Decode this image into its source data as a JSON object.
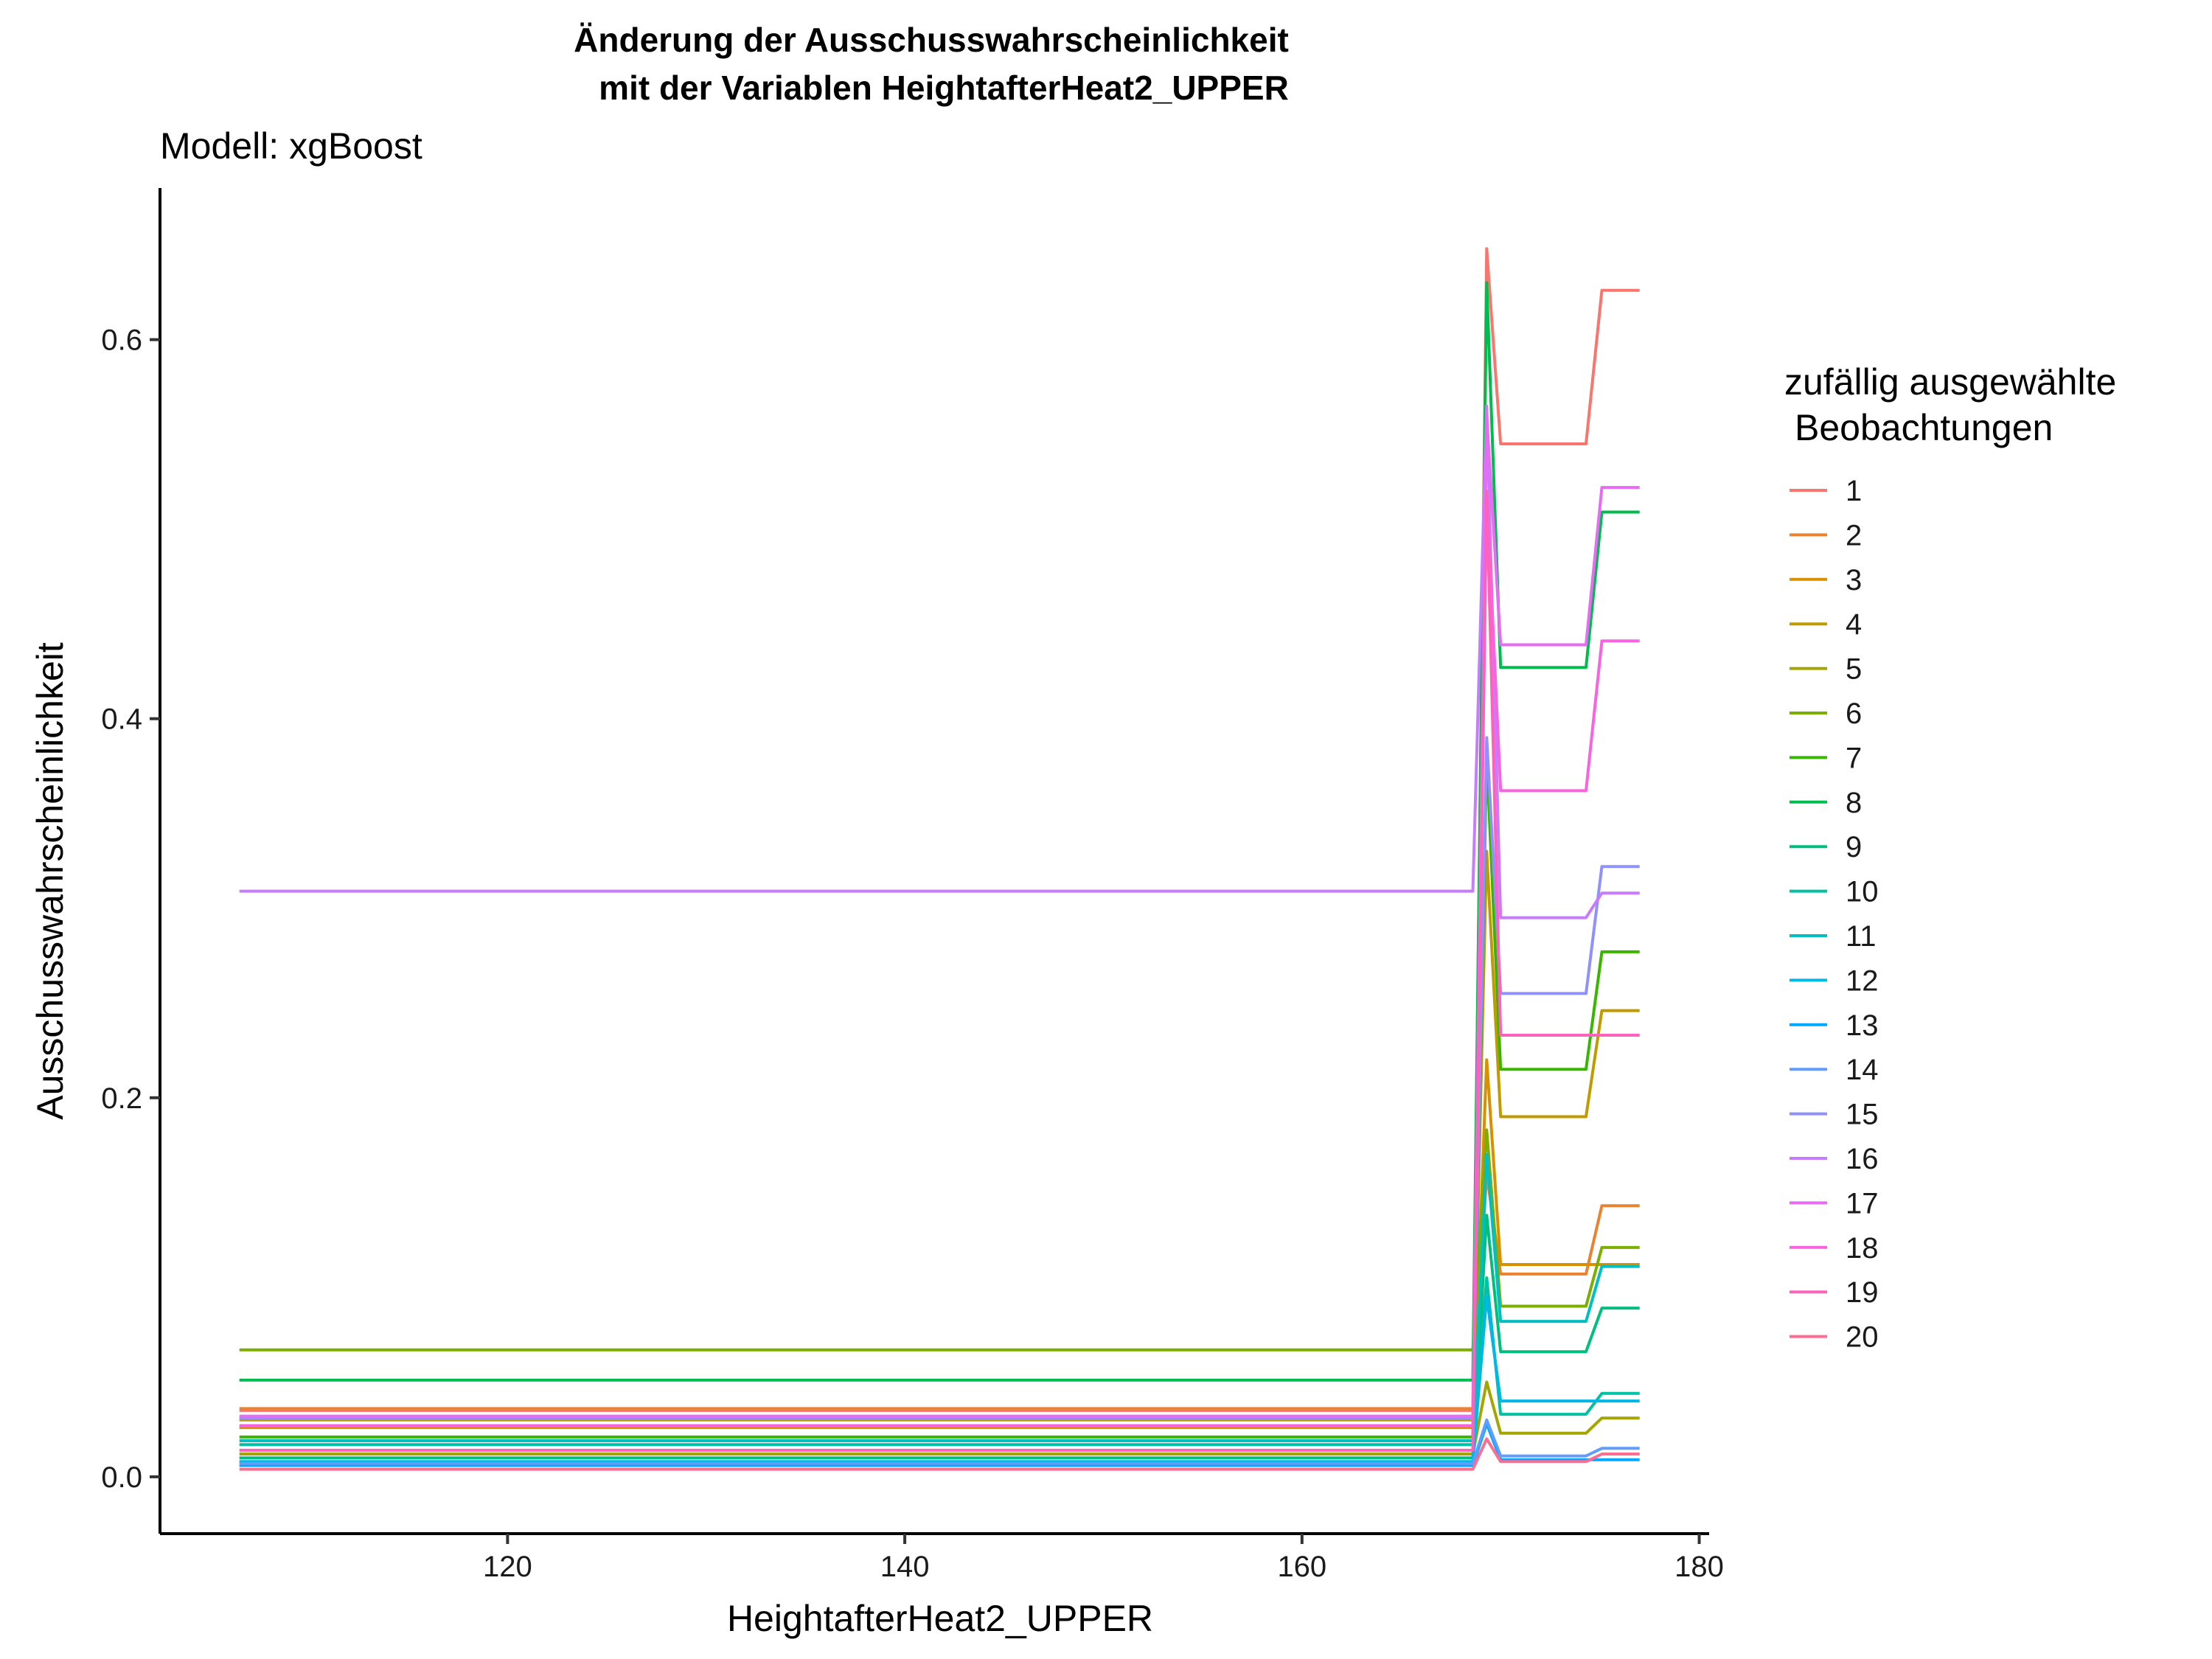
{
  "chart_data": {
    "type": "line",
    "title_lines": [
      "Änderung der Ausschusswahrscheinlichkeit",
      "mit der Variablen HeightafterHeat2_UPPER"
    ],
    "subtitle": "Modell: xgBoost",
    "xlabel": "HeightafterHeat2_UPPER",
    "ylabel": "Ausschusswahrscheinlichkeit",
    "xlim": [
      102.5,
      180.5
    ],
    "ylim": [
      -0.03,
      0.68
    ],
    "x_ticks": [
      120,
      140,
      160,
      180
    ],
    "y_ticks": [
      0.0,
      0.2,
      0.4,
      0.6
    ],
    "y_tick_labels": [
      "0.0",
      "0.2",
      "0.4",
      "0.6"
    ],
    "grid": false,
    "legend_title_lines": [
      "zufällig ausgewählte",
      "Beobachtungen"
    ],
    "legend_position": "right",
    "x": [
      106.5,
      168.6,
      169.3,
      170.0,
      174.3,
      175.1,
      177.0
    ],
    "series": [
      {
        "name": "1",
        "color": "#F8766D",
        "values": [
          0.035,
          0.035,
          0.648,
          0.545,
          0.545,
          0.626,
          0.626
        ]
      },
      {
        "name": "2",
        "color": "#EA8331",
        "values": [
          0.036,
          0.036,
          0.16,
          0.107,
          0.107,
          0.143,
          0.143
        ]
      },
      {
        "name": "3",
        "color": "#D89000",
        "values": [
          0.026,
          0.026,
          0.22,
          0.112,
          0.112,
          0.112,
          0.112
        ]
      },
      {
        "name": "4",
        "color": "#C09B00",
        "values": [
          0.03,
          0.03,
          0.33,
          0.19,
          0.19,
          0.246,
          0.246
        ]
      },
      {
        "name": "5",
        "color": "#A3A500",
        "values": [
          0.012,
          0.012,
          0.05,
          0.023,
          0.023,
          0.031,
          0.031
        ]
      },
      {
        "name": "6",
        "color": "#7CAE00",
        "values": [
          0.067,
          0.067,
          0.183,
          0.09,
          0.09,
          0.121,
          0.121
        ]
      },
      {
        "name": "7",
        "color": "#39B600",
        "values": [
          0.021,
          0.021,
          0.38,
          0.215,
          0.215,
          0.277,
          0.277
        ]
      },
      {
        "name": "8",
        "color": "#00BB4E",
        "values": [
          0.051,
          0.051,
          0.63,
          0.427,
          0.427,
          0.509,
          0.509
        ]
      },
      {
        "name": "9",
        "color": "#00BF7D",
        "values": [
          0.01,
          0.01,
          0.138,
          0.066,
          0.066,
          0.089,
          0.089
        ]
      },
      {
        "name": "10",
        "color": "#00C1A3",
        "values": [
          0.017,
          0.017,
          0.105,
          0.033,
          0.033,
          0.044,
          0.044
        ]
      },
      {
        "name": "11",
        "color": "#00BFC4",
        "values": [
          0.019,
          0.019,
          0.17,
          0.082,
          0.082,
          0.111,
          0.111
        ]
      },
      {
        "name": "12",
        "color": "#00B8E7",
        "values": [
          0.008,
          0.008,
          0.095,
          0.04,
          0.04,
          0.04,
          0.04
        ]
      },
      {
        "name": "13",
        "color": "#00A9FF",
        "values": [
          0.006,
          0.006,
          0.028,
          0.009,
          0.009,
          0.009,
          0.009
        ]
      },
      {
        "name": "14",
        "color": "#619CFF",
        "values": [
          0.007,
          0.007,
          0.03,
          0.011,
          0.011,
          0.015,
          0.015
        ]
      },
      {
        "name": "15",
        "color": "#8F91FF",
        "values": [
          0.031,
          0.031,
          0.39,
          0.255,
          0.255,
          0.322,
          0.322
        ]
      },
      {
        "name": "16",
        "color": "#C77CFF",
        "values": [
          0.309,
          0.309,
          0.565,
          0.295,
          0.295,
          0.308,
          0.308
        ]
      },
      {
        "name": "17",
        "color": "#E76BF3",
        "values": [
          0.032,
          0.032,
          0.56,
          0.439,
          0.439,
          0.522,
          0.522
        ]
      },
      {
        "name": "18",
        "color": "#F863DF",
        "values": [
          0.027,
          0.027,
          0.52,
          0.362,
          0.362,
          0.441,
          0.441
        ]
      },
      {
        "name": "19",
        "color": "#FF62BC",
        "values": [
          0.014,
          0.014,
          0.52,
          0.233,
          0.233,
          0.233,
          0.233
        ]
      },
      {
        "name": "20",
        "color": "#FF6C91",
        "values": [
          0.004,
          0.004,
          0.02,
          0.008,
          0.008,
          0.012,
          0.012
        ]
      }
    ]
  }
}
